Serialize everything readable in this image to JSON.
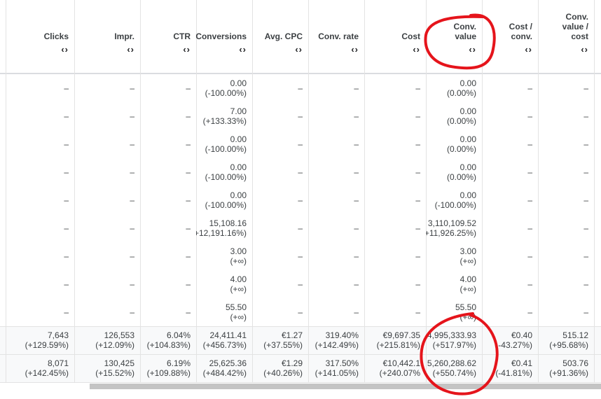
{
  "table": {
    "headers": [
      "Clicks",
      "Impr.",
      "CTR",
      "Conversions",
      "Avg. CPC",
      "Conv. rate",
      "Cost",
      "Conv. value",
      "Cost / conv.",
      "Conv. value / cost"
    ],
    "rows": [
      [
        [
          "–"
        ],
        [
          "–"
        ],
        [
          "–"
        ],
        [
          "0.00",
          "(-100.00%)"
        ],
        [
          "–"
        ],
        [
          "–"
        ],
        [
          "–"
        ],
        [
          "0.00",
          "(0.00%)"
        ],
        [
          "–"
        ],
        [
          "–"
        ]
      ],
      [
        [
          "–"
        ],
        [
          "–"
        ],
        [
          "–"
        ],
        [
          "7.00",
          "(+133.33%)"
        ],
        [
          "–"
        ],
        [
          "–"
        ],
        [
          "–"
        ],
        [
          "0.00",
          "(0.00%)"
        ],
        [
          "–"
        ],
        [
          "–"
        ]
      ],
      [
        [
          "–"
        ],
        [
          "–"
        ],
        [
          "–"
        ],
        [
          "0.00",
          "(-100.00%)"
        ],
        [
          "–"
        ],
        [
          "–"
        ],
        [
          "–"
        ],
        [
          "0.00",
          "(0.00%)"
        ],
        [
          "–"
        ],
        [
          "–"
        ]
      ],
      [
        [
          "–"
        ],
        [
          "–"
        ],
        [
          "–"
        ],
        [
          "0.00",
          "(-100.00%)"
        ],
        [
          "–"
        ],
        [
          "–"
        ],
        [
          "–"
        ],
        [
          "0.00",
          "(0.00%)"
        ],
        [
          "–"
        ],
        [
          "–"
        ]
      ],
      [
        [
          "–"
        ],
        [
          "–"
        ],
        [
          "–"
        ],
        [
          "0.00",
          "(-100.00%)"
        ],
        [
          "–"
        ],
        [
          "–"
        ],
        [
          "–"
        ],
        [
          "0.00",
          "(-100.00%)"
        ],
        [
          "–"
        ],
        [
          "–"
        ]
      ],
      [
        [
          "–"
        ],
        [
          "–"
        ],
        [
          "–"
        ],
        [
          "15,108.16",
          "+12,191.16%)"
        ],
        [
          "–"
        ],
        [
          "–"
        ],
        [
          "–"
        ],
        [
          "3,110,109.52",
          "+11,926.25%)"
        ],
        [
          "–"
        ],
        [
          "–"
        ]
      ],
      [
        [
          "–"
        ],
        [
          "–"
        ],
        [
          "–"
        ],
        [
          "3.00",
          "(+∞)"
        ],
        [
          "–"
        ],
        [
          "–"
        ],
        [
          "–"
        ],
        [
          "3.00",
          "(+∞)"
        ],
        [
          "–"
        ],
        [
          "–"
        ]
      ],
      [
        [
          "–"
        ],
        [
          "–"
        ],
        [
          "–"
        ],
        [
          "4.00",
          "(+∞)"
        ],
        [
          "–"
        ],
        [
          "–"
        ],
        [
          "–"
        ],
        [
          "4.00",
          "(+∞)"
        ],
        [
          "–"
        ],
        [
          "–"
        ]
      ],
      [
        [
          "–"
        ],
        [
          "–"
        ],
        [
          "–"
        ],
        [
          "55.50",
          "(+∞)"
        ],
        [
          "–"
        ],
        [
          "–"
        ],
        [
          "–"
        ],
        [
          "55.50",
          "(+∞)"
        ],
        [
          "–"
        ],
        [
          "–"
        ]
      ]
    ],
    "totals": [
      [
        [
          "7,643",
          "(+129.59%)"
        ],
        [
          "126,553",
          "(+12.09%)"
        ],
        [
          "6.04%",
          "(+104.83%)"
        ],
        [
          "24,411.41",
          "(+456.73%)"
        ],
        [
          "€1.27",
          "(+37.55%)"
        ],
        [
          "319.40%",
          "(+142.49%)"
        ],
        [
          "€9,697.35",
          "(+215.81%)"
        ],
        [
          "4,995,333.93",
          "(+517.97%)"
        ],
        [
          "€0.40",
          "-43.27%)"
        ],
        [
          "515.12",
          "(+95.68%)"
        ]
      ],
      [
        [
          "8,071",
          "(+142.45%)"
        ],
        [
          "130,425",
          "(+15.52%)"
        ],
        [
          "6.19%",
          "(+109.88%)"
        ],
        [
          "25,625.36",
          "(+484.42%)"
        ],
        [
          "€1.29",
          "(+40.26%)"
        ],
        [
          "317.50%",
          "(+141.05%)"
        ],
        [
          "€10,442.1",
          "(+240.07%"
        ],
        [
          "5,260,288.62",
          "(+550.74%)"
        ],
        [
          "€0.41",
          "(-41.81%)"
        ],
        [
          "503.76",
          "(+91.36%)"
        ]
      ]
    ]
  }
}
